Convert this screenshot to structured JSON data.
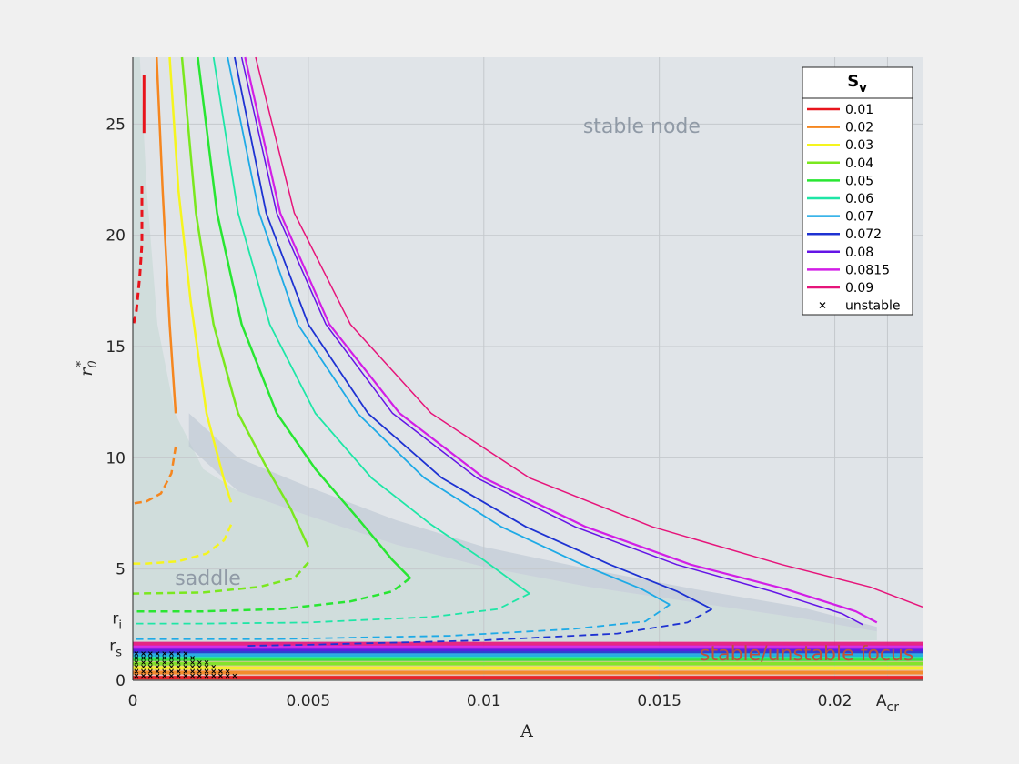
{
  "chart_data": {
    "type": "line",
    "xlabel": "A",
    "ylabel": "r",
    "ylabel_sup": "*",
    "ylabel_sub": "0",
    "xlim": [
      0,
      0.0225
    ],
    "ylim": [
      0,
      28
    ],
    "xticks": [
      0,
      0.005,
      0.01,
      0.015,
      0.02
    ],
    "xtick_labels": [
      "0",
      "0.005",
      "0.01",
      "0.015",
      "0.02"
    ],
    "extra_xtick": {
      "x": 0.0215,
      "label": "A",
      "sub": "cr"
    },
    "yticks": [
      0,
      5,
      10,
      15,
      20,
      25
    ],
    "ytick_labels": [
      "0",
      "5",
      "10",
      "15",
      "20",
      "25"
    ],
    "extra_yticks": [
      {
        "y": 2.3,
        "label": "r",
        "sub": "i"
      },
      {
        "y": 1.5,
        "label": "r",
        "sub": "s"
      }
    ],
    "grid": true,
    "annotations": [
      {
        "text": "stable node",
        "x": 0.0145,
        "y": 24.6,
        "color": "#909aa6"
      },
      {
        "text": "saddle",
        "x": 0.0012,
        "y": 4.3,
        "color": "#909aa6"
      },
      {
        "text": "stable/unstable focus",
        "x": 0.0192,
        "y": 0.9,
        "color": "#c0503a"
      }
    ],
    "legend": {
      "title": "S",
      "title_sub": "v",
      "position": "top-right",
      "entries": [
        "0.01",
        "0.02",
        "0.03",
        "0.04",
        "0.05",
        "0.06",
        "0.07",
        "0.072",
        "0.08",
        "0.0815",
        "0.09",
        "unstable"
      ]
    },
    "series": [
      {
        "name": "0.01",
        "color": "#e8141c",
        "width": 3,
        "stable": [
          [
            0.00032,
            27.2
          ],
          [
            0.00032,
            24.6
          ]
        ],
        "unstable": [
          [
            0.00026,
            22.2
          ],
          [
            0.00026,
            19.6
          ],
          [
            0.0002,
            18.2
          ],
          [
            0.0001,
            16.6
          ],
          [
            2e-05,
            16.0
          ]
        ],
        "focus_y": 0.12
      },
      {
        "name": "0.02",
        "color": "#f5861f",
        "width": 2.5,
        "stable": [
          [
            0.00068,
            28
          ],
          [
            0.00085,
            22
          ],
          [
            0.00105,
            16
          ],
          [
            0.00122,
            12
          ]
        ],
        "unstable": [
          [
            0.00122,
            10.5
          ],
          [
            0.0011,
            9.3
          ],
          [
            0.0008,
            8.4
          ],
          [
            0.0004,
            8.05
          ],
          [
            0.0,
            7.95
          ]
        ],
        "focus_y": 0.35
      },
      {
        "name": "0.03",
        "color": "#f5f51e",
        "width": 2.5,
        "stable": [
          [
            0.00105,
            28
          ],
          [
            0.0013,
            22
          ],
          [
            0.00165,
            17
          ],
          [
            0.0021,
            12
          ],
          [
            0.0026,
            9
          ],
          [
            0.0028,
            8.0
          ]
        ],
        "unstable": [
          [
            0.0028,
            7.0
          ],
          [
            0.0026,
            6.3
          ],
          [
            0.0021,
            5.7
          ],
          [
            0.0013,
            5.35
          ],
          [
            0.0004,
            5.25
          ],
          [
            0.0,
            5.25
          ]
        ],
        "focus_y": 0.55
      },
      {
        "name": "0.04",
        "color": "#7ae81e",
        "width": 2.5,
        "stable": [
          [
            0.0014,
            28
          ],
          [
            0.0018,
            21
          ],
          [
            0.0023,
            16
          ],
          [
            0.003,
            12
          ],
          [
            0.0038,
            9.6
          ],
          [
            0.0045,
            7.7
          ],
          [
            0.005,
            6.0
          ]
        ],
        "unstable": [
          [
            0.005,
            5.3
          ],
          [
            0.0046,
            4.6
          ],
          [
            0.0036,
            4.2
          ],
          [
            0.002,
            3.95
          ],
          [
            0.0,
            3.9
          ]
        ],
        "focus_y": 0.75
      },
      {
        "name": "0.05",
        "color": "#28e632",
        "width": 2.5,
        "stable": [
          [
            0.00185,
            28
          ],
          [
            0.0024,
            21
          ],
          [
            0.0031,
            16
          ],
          [
            0.0041,
            12
          ],
          [
            0.0052,
            9.5
          ],
          [
            0.0064,
            7.3
          ],
          [
            0.0074,
            5.4
          ],
          [
            0.0079,
            4.6
          ]
        ],
        "unstable": [
          [
            0.0079,
            4.6
          ],
          [
            0.0074,
            4.0
          ],
          [
            0.0062,
            3.55
          ],
          [
            0.0042,
            3.2
          ],
          [
            0.002,
            3.1
          ],
          [
            0.0,
            3.1
          ]
        ],
        "focus_y": 0.95
      },
      {
        "name": "0.06",
        "color": "#1ee6a6",
        "width": 1.8,
        "stable": [
          [
            0.0023,
            28
          ],
          [
            0.003,
            21
          ],
          [
            0.0039,
            16
          ],
          [
            0.0052,
            12
          ],
          [
            0.0068,
            9.1
          ],
          [
            0.0085,
            7.0
          ],
          [
            0.01,
            5.4
          ],
          [
            0.0113,
            3.9
          ]
        ],
        "unstable": [
          [
            0.0113,
            3.9
          ],
          [
            0.0104,
            3.2
          ],
          [
            0.0085,
            2.85
          ],
          [
            0.005,
            2.6
          ],
          [
            0.002,
            2.55
          ],
          [
            0.0,
            2.55
          ]
        ],
        "focus_y": 1.05
      },
      {
        "name": "0.07",
        "color": "#1eaae6",
        "width": 1.8,
        "stable": [
          [
            0.0027,
            28
          ],
          [
            0.0036,
            21
          ],
          [
            0.0047,
            16
          ],
          [
            0.0064,
            12
          ],
          [
            0.0083,
            9.1
          ],
          [
            0.0105,
            6.9
          ],
          [
            0.0128,
            5.2
          ],
          [
            0.0145,
            4.1
          ],
          [
            0.0153,
            3.4
          ]
        ],
        "unstable": [
          [
            0.0153,
            3.4
          ],
          [
            0.0146,
            2.65
          ],
          [
            0.0125,
            2.3
          ],
          [
            0.009,
            2.0
          ],
          [
            0.004,
            1.85
          ],
          [
            0.0,
            1.85
          ]
        ],
        "focus_y": 1.15
      },
      {
        "name": "0.072",
        "color": "#1e32d2",
        "width": 1.8,
        "stable": [
          [
            0.0029,
            28
          ],
          [
            0.0038,
            21
          ],
          [
            0.005,
            16
          ],
          [
            0.0067,
            12
          ],
          [
            0.0088,
            9.1
          ],
          [
            0.0112,
            6.9
          ],
          [
            0.0136,
            5.2
          ],
          [
            0.0155,
            4.0
          ],
          [
            0.0165,
            3.2
          ]
        ],
        "unstable": [
          [
            0.0165,
            3.2
          ],
          [
            0.0158,
            2.6
          ],
          [
            0.0138,
            2.1
          ],
          [
            0.01,
            1.8
          ],
          [
            0.005,
            1.6
          ],
          [
            0.0032,
            1.55
          ]
        ],
        "focus_y": 1.3
      },
      {
        "name": "0.08",
        "color": "#6414e6",
        "width": 1.5,
        "stable": [
          [
            0.0031,
            28
          ],
          [
            0.0041,
            21
          ],
          [
            0.0055,
            16
          ],
          [
            0.0074,
            12
          ],
          [
            0.0098,
            9.1
          ],
          [
            0.0126,
            6.9
          ],
          [
            0.0155,
            5.2
          ],
          [
            0.0182,
            4.0
          ],
          [
            0.0202,
            3.0
          ],
          [
            0.0208,
            2.5
          ]
        ],
        "unstable": [],
        "focus_y": 1.4
      },
      {
        "name": "0.0815",
        "color": "#d21ee6",
        "width": 2.2,
        "stable": [
          [
            0.0032,
            28
          ],
          [
            0.0042,
            21
          ],
          [
            0.0056,
            16
          ],
          [
            0.0076,
            12
          ],
          [
            0.01,
            9.1
          ],
          [
            0.0129,
            6.9
          ],
          [
            0.0159,
            5.2
          ],
          [
            0.0186,
            4.1
          ],
          [
            0.0206,
            3.1
          ],
          [
            0.0212,
            2.6
          ]
        ],
        "unstable": [],
        "focus_y": 1.5
      },
      {
        "name": "0.09",
        "color": "#e6147a",
        "width": 1.5,
        "stable": [
          [
            0.0035,
            28
          ],
          [
            0.0046,
            21
          ],
          [
            0.0062,
            16
          ],
          [
            0.0085,
            12
          ],
          [
            0.0113,
            9.1
          ],
          [
            0.0148,
            6.9
          ],
          [
            0.0185,
            5.2
          ],
          [
            0.021,
            4.2
          ],
          [
            0.0225,
            3.3
          ]
        ],
        "unstable": [],
        "focus_y": 1.65
      }
    ]
  }
}
